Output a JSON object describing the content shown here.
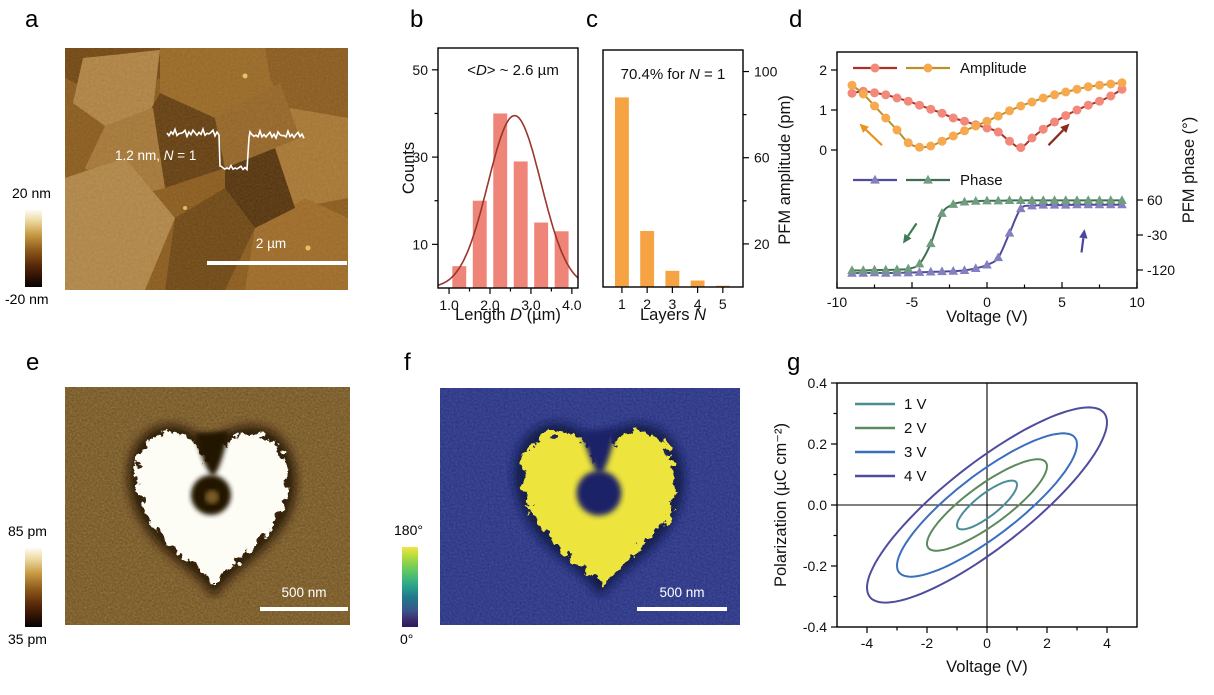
{
  "figure_labels": {
    "a": "a",
    "b": "b",
    "c": "c",
    "d": "d",
    "e": "e",
    "f": "f",
    "g": "g"
  },
  "panel_a": {
    "colorbar_top": "20 nm",
    "colorbar_bottom": "-20 nm",
    "annotation": {
      "pre": "1.2 nm, ",
      "it": "N",
      "post": " = 1"
    },
    "scalebar_label": "2 µm"
  },
  "panel_e": {
    "colorbar_top": "85 pm",
    "colorbar_bottom": "35 pm",
    "scalebar_label": "500 nm"
  },
  "panel_f": {
    "colorbar_top": "180°",
    "colorbar_bottom": "0°",
    "scalebar_label": "500 nm"
  },
  "chart_data": {
    "b": {
      "type": "bar",
      "annotation": {
        "pre": "<",
        "it": "D",
        "post": "> ~ 2.6 µm"
      },
      "xlabel": {
        "pre": "Length ",
        "it": "D",
        "post": " (µm)"
      },
      "ylabel": "Counts",
      "xlim": [
        0.73,
        4.15
      ],
      "ylim": [
        0,
        55
      ],
      "xticks": [
        1.0,
        2.0,
        3.0,
        4.0
      ],
      "xtick_labels": [
        "1.0",
        "2.0",
        "3.0",
        "4.0"
      ],
      "xticks_minor": [
        1.5,
        2.5,
        3.5
      ],
      "yticks": [
        10,
        30,
        50
      ],
      "yticks_minor": [
        20,
        40
      ],
      "categories": [
        1.25,
        1.75,
        2.25,
        2.75,
        3.25,
        3.75
      ],
      "values": [
        5,
        20,
        40,
        29,
        15,
        13
      ],
      "bar_width": 0.34,
      "bar_color": "#ef8478",
      "fit": {
        "type": "gaussian",
        "center": 2.6,
        "peak": 39.5,
        "sigma": 0.65,
        "color": "#9a362b"
      }
    },
    "c": {
      "type": "bar",
      "annotation": {
        "pre": "70.4% for  ",
        "it": "N",
        "post": " = 1"
      },
      "xlabel": {
        "pre": "Layers ",
        "it": "N",
        "post": ""
      },
      "xlim": [
        0.25,
        5.8
      ],
      "ylim": [
        0,
        110
      ],
      "xticks": [
        1,
        2,
        3,
        4,
        5
      ],
      "xtick_labels": [
        "1",
        "2",
        "3",
        "4",
        "5"
      ],
      "right_yticks": [
        20,
        60,
        100
      ],
      "right_yticks_minor": [
        40,
        80
      ],
      "categories": [
        1,
        2,
        3,
        4,
        5
      ],
      "values": [
        88,
        26,
        7.5,
        3,
        0.6
      ],
      "bar_width": 0.55,
      "bar_color": "#f6a344"
    },
    "d": {
      "type": "line",
      "xlabel": "Voltage (V)",
      "ylabel_left": "PFM amplitude (pm)",
      "ylabel_right": "PFM phase (°)",
      "xlim": [
        -10,
        10
      ],
      "xticks": [
        -10,
        -5,
        0,
        5,
        10
      ],
      "xtick_labels": [
        "-10",
        "-5",
        "0",
        "5",
        "10"
      ],
      "xticks_minor": [
        -7.5,
        -2.5,
        2.5,
        7.5
      ],
      "amp_ticks": [
        0,
        1,
        2
      ],
      "phase_ticks": [
        60,
        -30,
        -120
      ],
      "legend": {
        "amplitude": "Amplitude",
        "phase": "Phase"
      },
      "x": [
        -9,
        -8.25,
        -7.5,
        -6.75,
        -6,
        -5.25,
        -4.5,
        -3.75,
        -3,
        -2.25,
        -1.5,
        -0.75,
        0,
        0.75,
        1.5,
        2.25,
        3,
        3.75,
        4.5,
        5.25,
        6,
        6.75,
        7.5,
        8.25,
        9
      ],
      "series": [
        {
          "name": "amplitude-forward-sweep",
          "axis": "amp",
          "marker": "circle",
          "line_color": "#a93226",
          "marker_color": "#f2897a",
          "y": [
            1.42,
            1.47,
            1.43,
            1.38,
            1.3,
            1.22,
            1.12,
            1.02,
            0.92,
            0.8,
            0.72,
            0.63,
            0.55,
            0.45,
            0.22,
            0.06,
            0.3,
            0.52,
            0.7,
            0.86,
            1.0,
            1.12,
            1.22,
            1.35,
            1.52
          ]
        },
        {
          "name": "amplitude-reverse-sweep",
          "axis": "amp",
          "marker": "circle",
          "line_color": "#b8912a",
          "marker_color": "#f7a94f",
          "y": [
            1.62,
            1.4,
            1.1,
            0.8,
            0.5,
            0.18,
            0.07,
            0.1,
            0.22,
            0.35,
            0.48,
            0.6,
            0.72,
            0.85,
            0.98,
            1.1,
            1.2,
            1.3,
            1.38,
            1.45,
            1.52,
            1.58,
            1.62,
            1.65,
            1.68
          ]
        },
        {
          "name": "phase-forward-sweep",
          "axis": "phase",
          "marker": "triangle",
          "line_color": "#504c9c",
          "marker_color": "#8480c0",
          "y": [
            -128,
            -128,
            -127,
            -128,
            -127,
            -127,
            -126,
            -125,
            -124,
            -123,
            -121,
            -116,
            -107,
            -88,
            -25,
            38,
            45,
            47,
            47,
            47,
            48,
            48,
            48,
            48,
            48
          ]
        },
        {
          "name": "phase-reverse-sweep",
          "axis": "phase",
          "marker": "triangle",
          "line_color": "#3e6f54",
          "marker_color": "#6f9d7d",
          "y": [
            -121,
            -121,
            -120,
            -120,
            -119,
            -117,
            -104,
            -52,
            26,
            49,
            55,
            57,
            58,
            58,
            59,
            59,
            59,
            59,
            59,
            59,
            59,
            59,
            59,
            59,
            59
          ]
        }
      ],
      "arrows": [
        {
          "axis": "amp",
          "color": "#e8941e",
          "from": [
            -7.0,
            0.12
          ],
          "to": [
            -8.5,
            0.66
          ]
        },
        {
          "axis": "amp",
          "color": "#8e2b1f",
          "from": [
            4.1,
            0.12
          ],
          "to": [
            5.5,
            0.66
          ]
        },
        {
          "axis": "phase",
          "color": "#3e7a54",
          "from": [
            -4.7,
            0
          ],
          "to": [
            -5.6,
            -52
          ]
        },
        {
          "axis": "phase",
          "color": "#4a46a0",
          "from": [
            6.3,
            -75
          ],
          "to": [
            6.5,
            -15
          ]
        }
      ]
    },
    "g": {
      "type": "line",
      "xlabel": "Voltage (V)",
      "ylabel": "Polarization (µC cm⁻²)",
      "xlim": [
        -5,
        5
      ],
      "ylim": [
        -0.4,
        0.4
      ],
      "xticks": [
        -4,
        -2,
        0,
        2,
        4
      ],
      "xtick_labels": [
        "-4",
        "-2",
        "0",
        "2",
        "4"
      ],
      "xticks_minor": [
        -3,
        -1,
        1,
        3
      ],
      "yticks": [
        0.4,
        0.2,
        0.0,
        -0.2,
        -0.4
      ],
      "ytick_labels": [
        "0.4",
        "0.2",
        "0.0",
        "-0.2",
        "-0.4"
      ],
      "yticks_minor": [
        0.3,
        0.1,
        -0.1,
        -0.3
      ],
      "crosshair": true,
      "series": [
        {
          "label": "1 V",
          "color": "#4a8d96",
          "v_amplitude": 1,
          "p_max": 0.08,
          "p_at_zero": 0.045
        },
        {
          "label": "2 V",
          "color": "#5b8a5e",
          "v_amplitude": 2,
          "p_max": 0.15,
          "p_at_zero": 0.08
        },
        {
          "label": "3 V",
          "color": "#3a6fbe",
          "v_amplitude": 3,
          "p_max": 0.235,
          "p_at_zero": 0.125
        },
        {
          "label": "4 V",
          "color": "#4f4c9e",
          "v_amplitude": 4,
          "p_max": 0.32,
          "p_at_zero": 0.17
        }
      ]
    }
  }
}
